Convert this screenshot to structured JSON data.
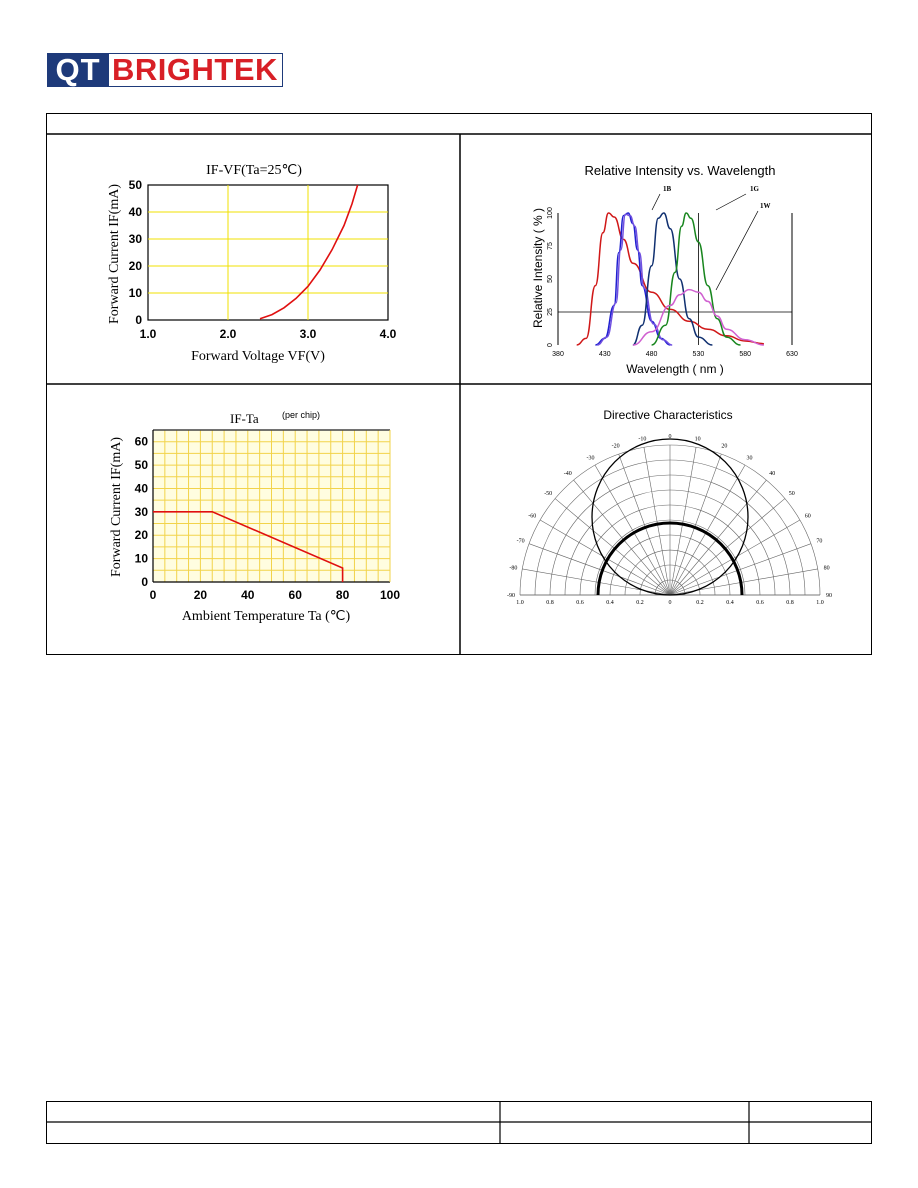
{
  "logo": {
    "part1": "QT",
    "part2": "BRIGHTEK"
  },
  "charts": {
    "ifvf": {
      "title": "IF-VF(Ta=25℃)",
      "xlabel": "Forward Voltage VF(V)",
      "ylabel": "Forward Current IF(mA)",
      "xticks": [
        "1.0",
        "2.0",
        "3.0",
        "4.0"
      ],
      "yticks": [
        "0",
        "10",
        "20",
        "30",
        "40",
        "50"
      ]
    },
    "ifta": {
      "title": "IF-Ta",
      "subtitle": "(per chip)",
      "xlabel": "Ambient Temperature Ta (℃)",
      "ylabel": "Forward Current IF(mA)",
      "xticks": [
        "0",
        "20",
        "40",
        "60",
        "80",
        "100"
      ],
      "yticks": [
        "0",
        "10",
        "20",
        "30",
        "40",
        "50",
        "60"
      ]
    },
    "spectrum": {
      "title": "Relative Intensity vs. Wavelength",
      "xlabel": "Wavelength ( nm )",
      "ylabel": "Relative Intensity ( % )",
      "xticks": [
        "380",
        "430",
        "480",
        "530",
        "580",
        "630"
      ],
      "yticks": [
        "0",
        "25",
        "50",
        "75",
        "100"
      ],
      "labels": [
        "1B",
        "1G",
        "1W"
      ]
    },
    "directive": {
      "title": "Directive Characteristics",
      "angle_labels_left": [
        "-10",
        "-20",
        "-30",
        "-40",
        "-50",
        "-60",
        "-70",
        "-80",
        "-90"
      ],
      "angle_labels_right": [
        "0",
        "10",
        "20",
        "30",
        "40",
        "50",
        "60",
        "70",
        "80",
        "90"
      ],
      "radial_ticks": [
        "1.0",
        "0.8",
        "0.6",
        "0.4",
        "0.2",
        "0",
        "0.2",
        "0.4",
        "0.6",
        "0.8",
        "1.0"
      ]
    }
  },
  "chart_data": [
    {
      "type": "line",
      "title": "IF-VF(Ta=25℃)",
      "xlabel": "Forward Voltage VF(V)",
      "ylabel": "Forward Current IF(mA)",
      "xlim": [
        1.0,
        4.0
      ],
      "ylim": [
        0,
        50
      ],
      "grid": true,
      "series": [
        {
          "color": "#e01010",
          "x": [
            2.4,
            2.55,
            2.7,
            2.85,
            3.0,
            3.15,
            3.3,
            3.45,
            3.55,
            3.62
          ],
          "y": [
            0.5,
            2,
            4.5,
            8,
            12.5,
            18.5,
            26,
            35,
            43,
            50
          ]
        }
      ]
    },
    {
      "type": "line",
      "title": "IF-Ta",
      "subtitle": "(per chip)",
      "xlabel": "Ambient Temperature Ta (℃)",
      "ylabel": "Forward Current IF(mA)",
      "xlim": [
        0,
        100
      ],
      "ylim": [
        0,
        65
      ],
      "grid": true,
      "series": [
        {
          "color": "#e01010",
          "x": [
            0,
            25,
            80,
            80
          ],
          "y": [
            30,
            30,
            6,
            0
          ]
        }
      ]
    },
    {
      "type": "line",
      "title": "Relative Intensity vs. Wavelength",
      "xlabel": "Wavelength ( nm )",
      "ylabel": "Relative Intensity ( % )",
      "xlim": [
        380,
        630
      ],
      "ylim": [
        0,
        100
      ],
      "series": [
        {
          "color": "#d01818",
          "x": [
            400,
            410,
            420,
            428,
            434,
            440,
            450,
            460,
            480,
            500,
            520,
            540,
            560,
            580,
            600
          ],
          "y": [
            0,
            5,
            45,
            85,
            100,
            97,
            80,
            62,
            40,
            27,
            18,
            12,
            7,
            3,
            1
          ]
        },
        {
          "color": "#2020d0",
          "x": [
            420,
            430,
            440,
            445,
            450,
            455,
            460,
            465,
            470,
            480,
            490,
            500
          ],
          "y": [
            0,
            5,
            30,
            70,
            98,
            100,
            92,
            72,
            45,
            18,
            5,
            0
          ]
        },
        {
          "color": "#7050e0",
          "x": [
            422,
            432,
            442,
            447,
            452,
            457,
            462,
            467,
            472,
            482,
            492,
            502
          ],
          "y": [
            0,
            6,
            32,
            72,
            99,
            98,
            90,
            70,
            43,
            16,
            4,
            0
          ]
        },
        {
          "color": "#103070",
          "x": [
            460,
            470,
            480,
            487,
            493,
            500,
            510,
            520,
            530,
            545
          ],
          "y": [
            0,
            15,
            60,
            96,
            100,
            88,
            50,
            20,
            6,
            0
          ]
        },
        {
          "color": "#18861e",
          "x": [
            480,
            495,
            505,
            512,
            517,
            522,
            530,
            540,
            550,
            560,
            575
          ],
          "y": [
            0,
            15,
            55,
            90,
            100,
            96,
            78,
            45,
            20,
            6,
            0
          ]
        },
        {
          "color": "#d060d0",
          "x": [
            460,
            480,
            500,
            510,
            520,
            530,
            540,
            550,
            560,
            580,
            600
          ],
          "y": [
            0,
            10,
            30,
            38,
            42,
            40,
            33,
            22,
            12,
            4,
            0
          ]
        }
      ]
    },
    {
      "type": "polar",
      "title": "Directive Characteristics",
      "angle_range": [
        -90,
        90
      ],
      "series": [
        {
          "name": "",
          "color": "#000000",
          "theta": [
            -90,
            -60,
            -30,
            0,
            30,
            60,
            90
          ],
          "r": [
            0,
            0.45,
            0.8,
            1.0,
            0.8,
            0.45,
            0
          ]
        },
        {
          "name": "",
          "color": "#000000",
          "theta": [
            -90,
            -60,
            -30,
            0,
            30,
            60,
            90
          ],
          "r": [
            0.48,
            0.48,
            0.48,
            0.48,
            0.48,
            0.48,
            0.48
          ]
        }
      ]
    }
  ]
}
